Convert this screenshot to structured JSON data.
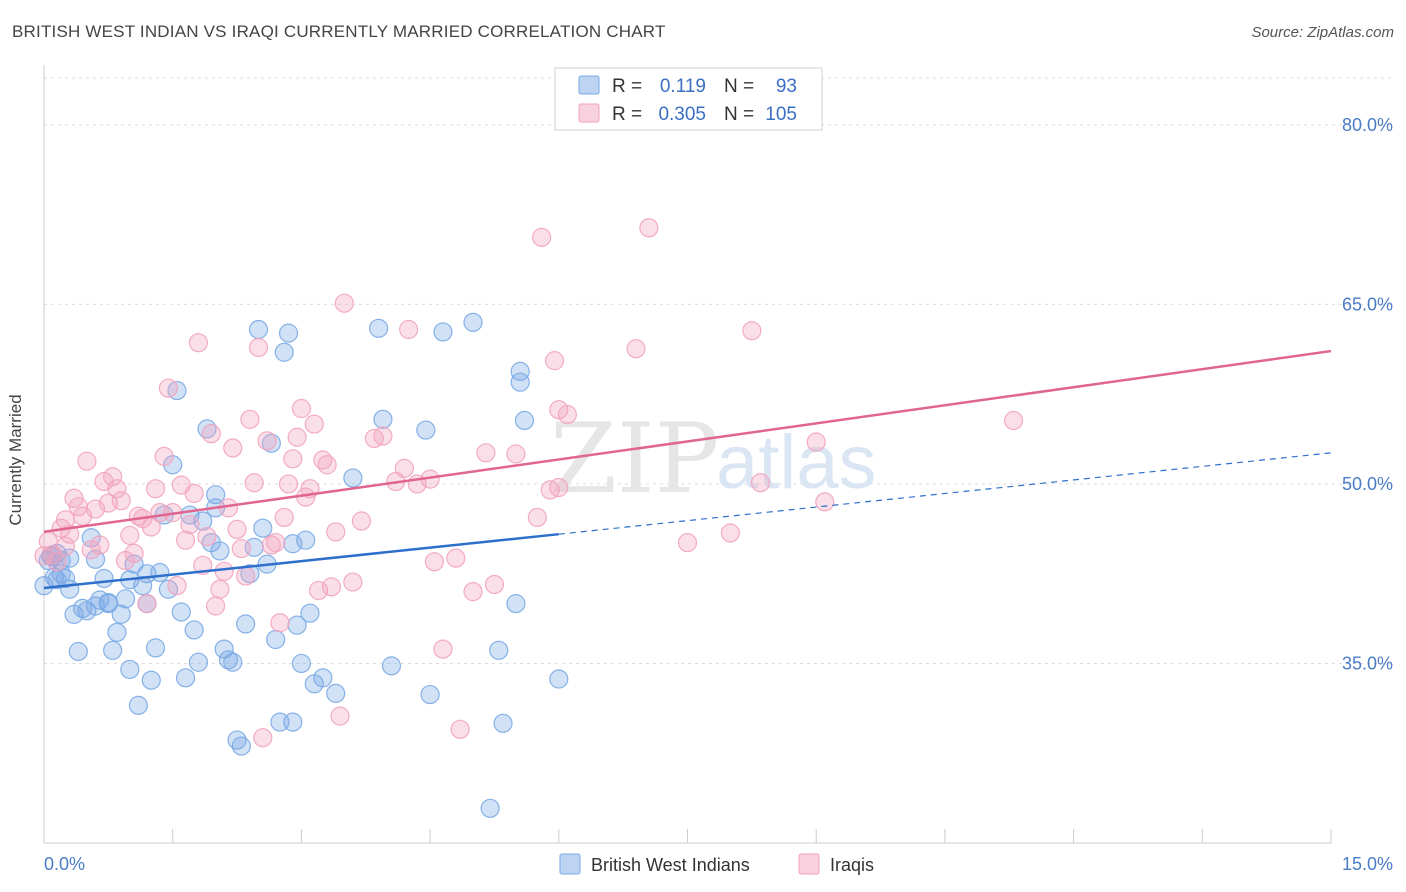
{
  "title": "BRITISH WEST INDIAN VS IRAQI CURRENTLY MARRIED CORRELATION CHART",
  "source": "Source: ZipAtlas.com",
  "watermark": {
    "zip": "ZIP",
    "atlas": "atlas"
  },
  "legend": {
    "r_label": "R =",
    "n_label": "N =",
    "rows": [
      {
        "series": "British West Indians",
        "r": "0.119",
        "n": "93",
        "color": "#7aaae6"
      },
      {
        "series": "Iraqis",
        "r": "0.305",
        "n": "105",
        "color": "#f2a3bd"
      }
    ]
  },
  "chart_data": {
    "type": "scatter",
    "title": "BRITISH WEST INDIAN VS IRAQI CURRENTLY MARRIED CORRELATION CHART",
    "xlabel": "",
    "ylabel": "Currently Married",
    "xlim": [
      0,
      15
    ],
    "ylim": [
      20,
      85
    ],
    "x_tick_labels": [
      "0.0%",
      "15.0%"
    ],
    "y_ticks": [
      35,
      50,
      65,
      80
    ],
    "y_tick_labels": [
      "35.0%",
      "50.0%",
      "65.0%",
      "80.0%"
    ],
    "grid": true,
    "legend_position": "top-center",
    "series": [
      {
        "name": "British West Indians",
        "color": "#7aaae6",
        "line_color": "#2e6fcc",
        "trend": {
          "x0": 0,
          "y0": 41.3,
          "x1": 6.0,
          "y1": 45.8,
          "dash_to_x": 15,
          "dash_to_y": 52.6
        },
        "points": [
          [
            0.0,
            41.5
          ],
          [
            0.05,
            43.6
          ],
          [
            0.08,
            44.0
          ],
          [
            0.1,
            43.9
          ],
          [
            0.12,
            42.2
          ],
          [
            0.15,
            44.2
          ],
          [
            0.2,
            43.6
          ],
          [
            0.25,
            42.1
          ],
          [
            0.3,
            41.2
          ],
          [
            0.35,
            39.1
          ],
          [
            0.4,
            36.0
          ],
          [
            0.45,
            39.6
          ],
          [
            0.5,
            39.4
          ],
          [
            0.55,
            45.5
          ],
          [
            0.6,
            43.7
          ],
          [
            0.65,
            40.3
          ],
          [
            0.7,
            42.1
          ],
          [
            0.75,
            40.0
          ],
          [
            0.8,
            36.1
          ],
          [
            0.85,
            37.6
          ],
          [
            0.9,
            39.1
          ],
          [
            0.95,
            40.4
          ],
          [
            1.0,
            34.5
          ],
          [
            1.05,
            43.3
          ],
          [
            1.1,
            31.5
          ],
          [
            1.15,
            41.5
          ],
          [
            1.2,
            42.5
          ],
          [
            1.25,
            33.6
          ],
          [
            1.3,
            36.3
          ],
          [
            1.35,
            42.6
          ],
          [
            1.4,
            47.4
          ],
          [
            1.45,
            41.2
          ],
          [
            1.5,
            51.6
          ],
          [
            1.55,
            57.8
          ],
          [
            1.6,
            39.3
          ],
          [
            1.65,
            33.8
          ],
          [
            1.7,
            47.4
          ],
          [
            1.75,
            37.8
          ],
          [
            1.8,
            35.1
          ],
          [
            1.85,
            46.9
          ],
          [
            1.9,
            54.6
          ],
          [
            1.95,
            45.1
          ],
          [
            2.0,
            49.1
          ],
          [
            2.05,
            44.4
          ],
          [
            2.1,
            36.2
          ],
          [
            2.15,
            35.3
          ],
          [
            2.2,
            35.1
          ],
          [
            2.25,
            28.6
          ],
          [
            2.3,
            28.1
          ],
          [
            2.35,
            38.3
          ],
          [
            2.4,
            42.5
          ],
          [
            2.45,
            44.7
          ],
          [
            2.5,
            62.9
          ],
          [
            2.55,
            46.3
          ],
          [
            2.6,
            43.3
          ],
          [
            2.65,
            53.4
          ],
          [
            2.7,
            37.0
          ],
          [
            2.75,
            30.1
          ],
          [
            2.8,
            61.0
          ],
          [
            2.85,
            62.6
          ],
          [
            2.9,
            30.1
          ],
          [
            2.95,
            38.2
          ],
          [
            3.0,
            35.0
          ],
          [
            3.05,
            45.3
          ],
          [
            3.1,
            39.2
          ],
          [
            3.15,
            33.3
          ],
          [
            3.25,
            33.8
          ],
          [
            3.4,
            32.5
          ],
          [
            3.6,
            50.5
          ],
          [
            2.9,
            45.0
          ],
          [
            3.9,
            63.0
          ],
          [
            3.95,
            55.4
          ],
          [
            4.05,
            34.8
          ],
          [
            4.5,
            32.4
          ],
          [
            4.45,
            54.5
          ],
          [
            4.65,
            62.7
          ],
          [
            5.0,
            63.5
          ],
          [
            5.55,
            59.4
          ],
          [
            5.6,
            55.3
          ],
          [
            5.2,
            22.9
          ],
          [
            5.3,
            36.1
          ],
          [
            5.35,
            30.0
          ],
          [
            5.5,
            40.0
          ],
          [
            5.55,
            58.5
          ],
          [
            6.0,
            33.7
          ],
          [
            0.2,
            42.5
          ],
          [
            0.3,
            43.8
          ],
          [
            0.6,
            39.8
          ],
          [
            0.75,
            40.1
          ],
          [
            1.2,
            40.0
          ],
          [
            0.15,
            42.0
          ],
          [
            2.0,
            48.0
          ],
          [
            1.0,
            42.0
          ]
        ]
      },
      {
        "name": "Iraqis",
        "color": "#f2a3bd",
        "line_color": "#e06591",
        "trend": {
          "x0": 0,
          "y0": 46.0,
          "x1": 15,
          "y1": 61.1
        },
        "points": [
          [
            0.0,
            44.0
          ],
          [
            0.05,
            45.2
          ],
          [
            0.1,
            44.1
          ],
          [
            0.15,
            43.5
          ],
          [
            0.2,
            46.3
          ],
          [
            0.25,
            44.8
          ],
          [
            0.3,
            45.8
          ],
          [
            0.35,
            48.8
          ],
          [
            0.4,
            48.1
          ],
          [
            0.45,
            47.3
          ],
          [
            0.5,
            51.9
          ],
          [
            0.55,
            44.5
          ],
          [
            0.6,
            47.9
          ],
          [
            0.65,
            44.9
          ],
          [
            0.7,
            50.2
          ],
          [
            0.75,
            48.4
          ],
          [
            0.8,
            50.6
          ],
          [
            0.85,
            49.6
          ],
          [
            0.9,
            48.6
          ],
          [
            0.95,
            43.6
          ],
          [
            1.0,
            45.7
          ],
          [
            1.05,
            44.2
          ],
          [
            1.1,
            47.3
          ],
          [
            1.15,
            47.1
          ],
          [
            1.2,
            40.0
          ],
          [
            1.25,
            46.4
          ],
          [
            1.3,
            49.6
          ],
          [
            1.35,
            47.6
          ],
          [
            1.4,
            52.3
          ],
          [
            1.45,
            58.0
          ],
          [
            1.5,
            47.6
          ],
          [
            1.55,
            41.5
          ],
          [
            1.6,
            49.9
          ],
          [
            1.65,
            45.3
          ],
          [
            1.7,
            46.6
          ],
          [
            1.75,
            49.2
          ],
          [
            1.8,
            61.8
          ],
          [
            1.85,
            43.2
          ],
          [
            1.9,
            45.6
          ],
          [
            1.95,
            54.2
          ],
          [
            2.0,
            39.8
          ],
          [
            2.05,
            41.2
          ],
          [
            2.1,
            42.7
          ],
          [
            2.15,
            48.0
          ],
          [
            2.2,
            53.0
          ],
          [
            2.25,
            46.2
          ],
          [
            2.3,
            44.6
          ],
          [
            2.35,
            42.3
          ],
          [
            2.4,
            55.4
          ],
          [
            2.45,
            50.1
          ],
          [
            2.5,
            61.4
          ],
          [
            2.55,
            28.8
          ],
          [
            2.6,
            53.6
          ],
          [
            2.65,
            44.9
          ],
          [
            2.7,
            45.1
          ],
          [
            2.75,
            38.4
          ],
          [
            2.8,
            47.2
          ],
          [
            2.85,
            50.0
          ],
          [
            2.9,
            52.1
          ],
          [
            2.95,
            53.9
          ],
          [
            3.0,
            56.3
          ],
          [
            3.05,
            48.9
          ],
          [
            3.1,
            49.6
          ],
          [
            3.15,
            55.0
          ],
          [
            3.2,
            41.1
          ],
          [
            3.25,
            52.0
          ],
          [
            3.3,
            51.6
          ],
          [
            3.35,
            41.4
          ],
          [
            3.4,
            46.0
          ],
          [
            3.45,
            30.6
          ],
          [
            3.5,
            65.1
          ],
          [
            3.6,
            41.8
          ],
          [
            3.7,
            46.9
          ],
          [
            3.85,
            53.8
          ],
          [
            3.95,
            54.0
          ],
          [
            4.1,
            50.2
          ],
          [
            4.2,
            51.3
          ],
          [
            4.25,
            62.9
          ],
          [
            4.35,
            50.0
          ],
          [
            4.5,
            50.4
          ],
          [
            4.55,
            43.5
          ],
          [
            4.65,
            36.2
          ],
          [
            4.8,
            43.8
          ],
          [
            4.85,
            29.5
          ],
          [
            5.0,
            41.0
          ],
          [
            5.15,
            52.6
          ],
          [
            5.25,
            41.6
          ],
          [
            5.5,
            52.5
          ],
          [
            5.75,
            47.2
          ],
          [
            5.8,
            70.6
          ],
          [
            5.9,
            49.5
          ],
          [
            5.95,
            60.3
          ],
          [
            6.0,
            56.2
          ],
          [
            6.1,
            55.8
          ],
          [
            6.0,
            49.7
          ],
          [
            6.9,
            61.3
          ],
          [
            7.05,
            71.4
          ],
          [
            7.5,
            45.1
          ],
          [
            8.0,
            45.9
          ],
          [
            8.25,
            62.8
          ],
          [
            8.35,
            50.1
          ],
          [
            9.0,
            53.5
          ],
          [
            9.1,
            48.5
          ],
          [
            11.3,
            55.3
          ],
          [
            0.25,
            47.0
          ]
        ]
      }
    ]
  }
}
